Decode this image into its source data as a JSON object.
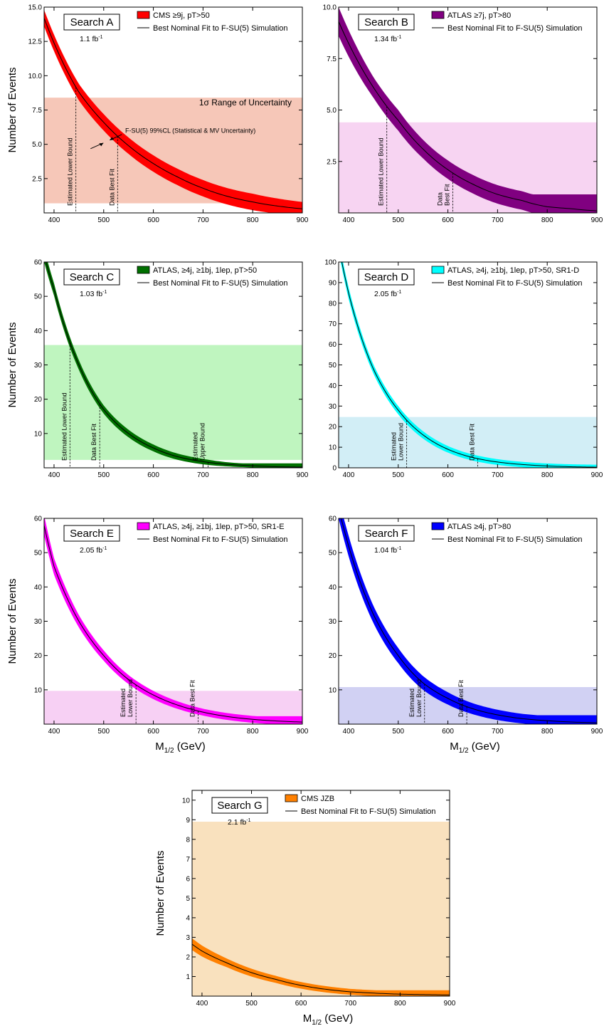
{
  "chart_data": [
    {
      "type": "area",
      "panel": "Search A",
      "box_label": "Search A",
      "luminosity": "1.1 fb⁻¹",
      "legend": [
        "CMS ≥9j, pT>50",
        "Best Nominal Fit to F-SU(5) Simulation"
      ],
      "band_color": "#ff0000",
      "range_color": "#f6c7b8",
      "xlim": [
        380,
        900
      ],
      "ylim": [
        0,
        15
      ],
      "xticks": [
        400,
        500,
        600,
        700,
        800,
        900
      ],
      "yticks": [
        2.5,
        5.0,
        7.5,
        10.0,
        12.5,
        15.0
      ],
      "ytick_labels": [
        "2.5",
        "5.0",
        "7.5",
        "10.0",
        "12.5",
        "15.0"
      ],
      "uncertainty_range": [
        0.7,
        8.4
      ],
      "fit_points": {
        "x": [
          380,
          450,
          500,
          550,
          600,
          650,
          700,
          750,
          800,
          850,
          900
        ],
        "y": [
          14.2,
          8.8,
          6.6,
          4.9,
          3.6,
          2.6,
          1.8,
          1.2,
          0.8,
          0.5,
          0.3
        ]
      },
      "band_halfwidth": [
        0.6,
        0.6,
        0.6,
        0.6,
        0.6,
        0.6,
        0.6,
        0.6,
        0.6,
        0.55,
        0.5
      ],
      "asymptote": 0.75,
      "ylabel": "Number of Events",
      "range_label": "1σ Range of Uncertainty",
      "band_label": "F-SU(5) 99%CL (Statistical & MV Uncertainty)",
      "markers": [
        {
          "x": 444,
          "label": "Estimated Lower Bound"
        },
        {
          "x": 528,
          "label": "Data Best Fit"
        }
      ]
    },
    {
      "type": "area",
      "panel": "Search B",
      "box_label": "Search B",
      "luminosity": "1.34 fb⁻¹",
      "legend": [
        "ATLAS ≥7j, pT>80",
        "Best Nominal Fit to F-SU(5) Simulation"
      ],
      "band_color": "#800080",
      "range_color": "#f7d4f2",
      "xlim": [
        380,
        900
      ],
      "ylim": [
        0,
        10
      ],
      "xticks": [
        400,
        500,
        600,
        700,
        800,
        900
      ],
      "yticks": [
        2.5,
        5.0,
        7.5,
        10.0
      ],
      "ytick_labels": [
        "2.5",
        "5.0",
        "7.5",
        "10.0"
      ],
      "uncertainty_range": [
        0,
        4.4
      ],
      "fit_points": {
        "x": [
          380,
          450,
          500,
          550,
          600,
          650,
          700,
          750,
          800,
          850,
          900
        ],
        "y": [
          9.3,
          6.1,
          4.5,
          3.1,
          2.1,
          1.4,
          0.9,
          0.6,
          0.3,
          0.2,
          0.1
        ]
      },
      "band_halfwidth": [
        0.7,
        0.5,
        0.5,
        0.45,
        0.45,
        0.45,
        0.45,
        0.45,
        0.45,
        0.45,
        0.45
      ],
      "asymptote": 0.9,
      "ylabel": "",
      "markers": [
        {
          "x": 477,
          "label": "Estimated Lower Bound"
        },
        {
          "x": 610,
          "label": "Data Best Fit"
        }
      ]
    },
    {
      "type": "area",
      "panel": "Search C",
      "box_label": "Search C",
      "luminosity": "1.03 fb⁻¹",
      "legend": [
        "ATLAS, ≥4j, ≥1bj, 1lep, pT>50",
        "Best Nominal Fit to F-SU(5) Simulation"
      ],
      "band_color": "#007000",
      "range_color": "#bff5bf",
      "xlim": [
        380,
        900
      ],
      "ylim": [
        0,
        60
      ],
      "xticks": [
        400,
        500,
        600,
        700,
        800,
        900
      ],
      "yticks": [
        10,
        20,
        30,
        40,
        50,
        60
      ],
      "ytick_labels": [
        "10",
        "20",
        "30",
        "40",
        "50",
        "60"
      ],
      "uncertainty_range": [
        2.3,
        35.8
      ],
      "fit_points": {
        "x": [
          380,
          400,
          450,
          500,
          550,
          600,
          650,
          700,
          750,
          800,
          850,
          900
        ],
        "y": [
          62,
          52,
          30,
          17,
          10,
          5.8,
          3.2,
          1.8,
          1.0,
          0.6,
          0.3,
          0.2
        ]
      },
      "band_halfwidth": [
        2,
        1.8,
        1.4,
        1.2,
        1.1,
        1.0,
        0.9,
        0.8,
        0.6,
        0.5,
        0.4,
        0.4
      ],
      "asymptote": 1.3,
      "ylabel": "Number of Events",
      "markers": [
        {
          "x": 432,
          "label": "Estimated Lower Bound"
        },
        {
          "x": 492,
          "label": "Data Best Fit"
        },
        {
          "x": 710,
          "label": "Estimated Upper Bound"
        }
      ]
    },
    {
      "type": "area",
      "panel": "Search D",
      "box_label": "Search D",
      "luminosity": "2.05 fb⁻¹",
      "legend": [
        "ATLAS, ≥4j, ≥1bj, 1lep, pT>50, SR1-D",
        "Best Nominal Fit to F-SU(5) Simulation"
      ],
      "band_color": "#00ffff",
      "range_color": "#d2eef6",
      "xlim": [
        380,
        900
      ],
      "ylim": [
        0,
        100
      ],
      "xticks": [
        400,
        500,
        600,
        700,
        800,
        900
      ],
      "yticks": [
        0,
        10,
        20,
        30,
        40,
        50,
        60,
        70,
        80,
        90,
        100
      ],
      "ytick_labels": [
        "0",
        "10",
        "20",
        "30",
        "40",
        "50",
        "60",
        "70",
        "80",
        "90",
        "100"
      ],
      "uncertainty_range": [
        0,
        24.7
      ],
      "fit_points": {
        "x": [
          380,
          400,
          450,
          500,
          550,
          600,
          650,
          700,
          750,
          800,
          850,
          900
        ],
        "y": [
          108,
          85,
          48,
          28,
          16,
          9,
          5,
          2.8,
          1.6,
          0.9,
          0.5,
          0.3
        ]
      },
      "band_halfwidth": [
        3,
        2.8,
        2.2,
        2,
        1.8,
        1.6,
        1.5,
        1.4,
        1.3,
        1.2,
        1.2,
        1.2
      ],
      "asymptote": 1.5,
      "ylabel": "",
      "markers": [
        {
          "x": 517,
          "label": "Estimated Lower Bound"
        },
        {
          "x": 660,
          "label": "Data Best Fit"
        }
      ]
    },
    {
      "type": "area",
      "panel": "Search E",
      "box_label": "Search E",
      "luminosity": "2.05 fb⁻¹",
      "legend": [
        "ATLAS, ≥4j, ≥1bj, 1lep, pT>50, SR1-E",
        "Best Nominal Fit to F-SU(5) Simulation"
      ],
      "band_color": "#ff00ff",
      "range_color": "#f7d0f4",
      "xlim": [
        380,
        900
      ],
      "ylim": [
        0,
        60
      ],
      "xticks": [
        400,
        500,
        600,
        700,
        800,
        900
      ],
      "yticks": [
        10,
        20,
        30,
        40,
        50,
        60
      ],
      "ytick_labels": [
        "10",
        "20",
        "30",
        "40",
        "50",
        "60"
      ],
      "uncertainty_range": [
        0,
        9.7
      ],
      "fit_points": {
        "x": [
          380,
          400,
          450,
          500,
          550,
          600,
          650,
          700,
          750,
          800,
          850,
          900
        ],
        "y": [
          58,
          46,
          30,
          20,
          13,
          8.5,
          5.5,
          3.5,
          2.2,
          1.4,
          0.9,
          0.6
        ]
      },
      "band_halfwidth": [
        3,
        2.4,
        1.8,
        1.5,
        1.3,
        1.2,
        1.1,
        1,
        1,
        1,
        1,
        1
      ],
      "asymptote": 2.3,
      "ylabel": "Number of Events",
      "xlabel": "M1/2 (GeV)",
      "markers": [
        {
          "x": 565,
          "label": "Estimated Lower Bound"
        },
        {
          "x": 690,
          "label": "Data Best Fit"
        }
      ]
    },
    {
      "type": "area",
      "panel": "Search F",
      "box_label": "Search F",
      "luminosity": "1.04 fb⁻¹",
      "legend": [
        "ATLAS ≥4j, pT>80",
        "Best Nominal Fit to F-SU(5) Simulation"
      ],
      "band_color": "#0000ff",
      "range_color": "#d1d1f3",
      "xlim": [
        380,
        900
      ],
      "ylim": [
        0,
        60
      ],
      "xticks": [
        400,
        500,
        600,
        700,
        800,
        900
      ],
      "yticks": [
        10,
        20,
        30,
        40,
        50,
        60
      ],
      "ytick_labels": [
        "10",
        "20",
        "30",
        "40",
        "50",
        "60"
      ],
      "uncertainty_range": [
        0,
        10.8
      ],
      "fit_points": {
        "x": [
          380,
          400,
          450,
          500,
          550,
          600,
          650,
          700,
          750,
          800,
          850,
          900
        ],
        "y": [
          63,
          52,
          32,
          20,
          12,
          7.5,
          4.5,
          2.7,
          1.6,
          1.0,
          0.6,
          0.4
        ]
      },
      "band_halfwidth": [
        3,
        3,
        2.5,
        2.2,
        2,
        1.8,
        1.6,
        1.5,
        1.4,
        1.4,
        1.3,
        1.3
      ],
      "asymptote": 2.6,
      "ylabel": "",
      "xlabel": "M1/2 (GeV)",
      "markers": [
        {
          "x": 553,
          "label": "Estimated Lower Bound"
        },
        {
          "x": 638,
          "label": "Data Best Fit"
        }
      ]
    },
    {
      "type": "area",
      "panel": "Search G",
      "box_label": "Search G",
      "luminosity": "2.1 fb⁻¹",
      "legend": [
        "CMS JZB",
        "Best Nominal Fit to F-SU(5) Simulation"
      ],
      "band_color": "#ff8000",
      "range_color": "#f9e1be",
      "xlim": [
        380,
        900
      ],
      "ylim": [
        0,
        10.5
      ],
      "xticks": [
        400,
        500,
        600,
        700,
        800,
        900
      ],
      "yticks": [
        1,
        2,
        3,
        4,
        5,
        6,
        7,
        8,
        9,
        10
      ],
      "ytick_labels": [
        "1",
        "2",
        "3",
        "4",
        "5",
        "6",
        "7",
        "8",
        "9",
        "10"
      ],
      "uncertainty_range": [
        0,
        8.9
      ],
      "fit_points": {
        "x": [
          380,
          400,
          450,
          500,
          550,
          600,
          650,
          700,
          750,
          800,
          850,
          900
        ],
        "y": [
          2.65,
          2.3,
          1.7,
          1.2,
          0.85,
          0.55,
          0.35,
          0.22,
          0.15,
          0.1,
          0.08,
          0.06
        ]
      },
      "band_halfwidth": [
        0.3,
        0.28,
        0.22,
        0.2,
        0.18,
        0.17,
        0.16,
        0.15,
        0.15,
        0.15,
        0.15,
        0.15
      ],
      "asymptote": 0.3,
      "ylabel": "Number of Events",
      "xlabel": "M1/2 (GeV)",
      "markers": []
    }
  ]
}
